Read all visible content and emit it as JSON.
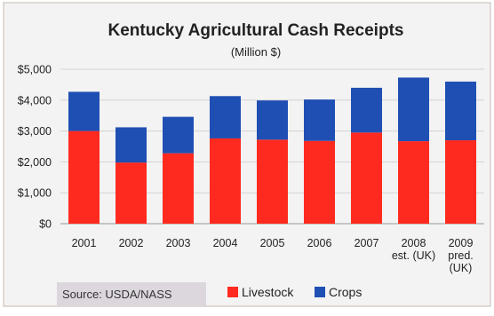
{
  "chart_data": {
    "type": "bar",
    "stacked": true,
    "title": "Kentucky Agricultural Cash Receipts",
    "subtitle": "(Million $)",
    "categories": [
      [
        "2001"
      ],
      [
        "2002"
      ],
      [
        "2003"
      ],
      [
        "2004"
      ],
      [
        "2005"
      ],
      [
        "2006"
      ],
      [
        "2007"
      ],
      [
        "2008",
        "est. (UK)"
      ],
      [
        "2009",
        "pred.",
        "(UK)"
      ]
    ],
    "series": [
      {
        "name": "Livestock",
        "color": "#ff2a1f",
        "values": [
          3000,
          1980,
          2280,
          2760,
          2720,
          2680,
          2950,
          2670,
          2700
        ]
      },
      {
        "name": "Crops",
        "color": "#1f4fb3",
        "values": [
          1270,
          1140,
          1180,
          1370,
          1270,
          1340,
          1450,
          2060,
          1900
        ]
      }
    ],
    "ylim": [
      0,
      5000
    ],
    "yticks": [
      0,
      1000,
      2000,
      3000,
      4000,
      5000
    ],
    "ytick_labels": [
      "$0",
      "$1,000",
      "$2,000",
      "$3,000",
      "$4,000",
      "$5,000"
    ],
    "grid": true,
    "legend_position": "bottom",
    "source": "Source: USDA/NASS",
    "colors": {
      "background": "#f2f2f2",
      "border": "#d0c7bf",
      "source_box": "#dcd7dd"
    }
  }
}
